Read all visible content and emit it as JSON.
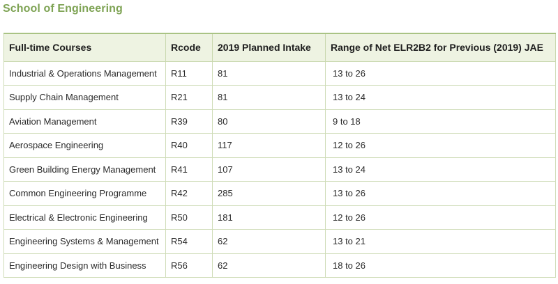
{
  "section": {
    "title": "School of Engineering"
  },
  "table": {
    "headers": [
      "Full-time Courses",
      "Rcode",
      "2019 Planned Intake",
      "Range of Net ELR2B2 for Previous (2019) JAE"
    ],
    "rows": [
      [
        "Industrial & Operations Management",
        "R11",
        "81",
        "13 to 26"
      ],
      [
        "Supply Chain Management",
        "R21",
        "81",
        "13 to 24"
      ],
      [
        "Aviation Management",
        "R39",
        "80",
        "9 to 18"
      ],
      [
        "Aerospace Engineering",
        "R40",
        "117",
        "12 to 26"
      ],
      [
        "Green Building Energy Management",
        "R41",
        "107",
        "13 to 24"
      ],
      [
        "Common Engineering Programme",
        "R42",
        "285",
        "13 to 26"
      ],
      [
        "Electrical & Electronic Engineering",
        "R50",
        "181",
        "12 to 26"
      ],
      [
        "Engineering Systems & Management",
        "R54",
        "62",
        "13 to 21"
      ],
      [
        "Engineering Design with Business",
        "R56",
        "62",
        "18 to 26"
      ]
    ]
  },
  "colors": {
    "title": "#7ea354",
    "header_bg": "#eef3e2",
    "border": "#cfdcb8"
  }
}
